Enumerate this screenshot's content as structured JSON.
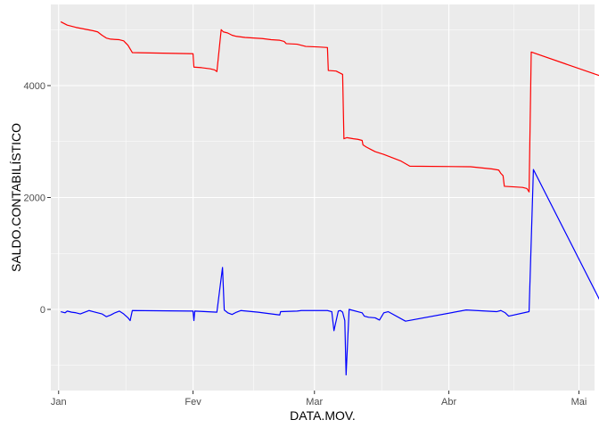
{
  "chart_data": {
    "type": "line",
    "title": "",
    "xlabel": "DATA.MOV.",
    "ylabel": "SALDO.CONTABILÍSTICO",
    "x_tick_labels": [
      "Jan",
      "Fev",
      "Mar",
      "Abr",
      "Mai"
    ],
    "x_tick_days": [
      1,
      32,
      60,
      91,
      121
    ],
    "y_tick_values": [
      0,
      2000,
      4000
    ],
    "y_tick_labels": [
      "0",
      "2000",
      "4000"
    ],
    "xlim_days": [
      -0.8,
      124.6
    ],
    "ylim": [
      -1450,
      5450
    ],
    "grid": true,
    "legend": "none",
    "background": "#EBEBEB",
    "series": [
      {
        "color": "#FF0000",
        "points": [
          [
            1.5,
            5140
          ],
          [
            2,
            5120
          ],
          [
            3,
            5080
          ],
          [
            5,
            5040
          ],
          [
            7,
            5010
          ],
          [
            9,
            4980
          ],
          [
            10,
            4960
          ],
          [
            11,
            4900
          ],
          [
            12,
            4850
          ],
          [
            13,
            4830
          ],
          [
            15,
            4820
          ],
          [
            16,
            4800
          ],
          [
            17,
            4720
          ],
          [
            18,
            4590
          ],
          [
            32,
            4570
          ],
          [
            32.2,
            4330
          ],
          [
            34,
            4320
          ],
          [
            36,
            4300
          ],
          [
            37,
            4280
          ],
          [
            37.5,
            4250
          ],
          [
            38.5,
            5000
          ],
          [
            39,
            4960
          ],
          [
            40,
            4940
          ],
          [
            41,
            4900
          ],
          [
            42,
            4880
          ],
          [
            44,
            4860
          ],
          [
            46,
            4850
          ],
          [
            48,
            4840
          ],
          [
            50,
            4820
          ],
          [
            52,
            4810
          ],
          [
            53,
            4790
          ],
          [
            53.5,
            4750
          ],
          [
            56,
            4740
          ],
          [
            57,
            4720
          ],
          [
            58,
            4700
          ],
          [
            61,
            4690
          ],
          [
            63,
            4680
          ],
          [
            63.2,
            4270
          ],
          [
            65,
            4260
          ],
          [
            65.5,
            4240
          ],
          [
            66.5,
            4200
          ],
          [
            66.8,
            3050
          ],
          [
            67.5,
            3070
          ],
          [
            69,
            3050
          ],
          [
            70,
            3040
          ],
          [
            71,
            3020
          ],
          [
            71.2,
            2940
          ],
          [
            72,
            2900
          ],
          [
            73,
            2860
          ],
          [
            74,
            2820
          ],
          [
            76,
            2770
          ],
          [
            78,
            2710
          ],
          [
            80,
            2650
          ],
          [
            82,
            2560
          ],
          [
            96,
            2550
          ],
          [
            101,
            2510
          ],
          [
            102.5,
            2490
          ],
          [
            103,
            2430
          ],
          [
            103.5,
            2390
          ],
          [
            103.8,
            2200
          ],
          [
            106,
            2190
          ],
          [
            108,
            2180
          ],
          [
            109,
            2160
          ],
          [
            109.5,
            2100
          ],
          [
            110,
            4600
          ],
          [
            130.5,
            4050
          ]
        ]
      },
      {
        "color": "#0000FF",
        "points": [
          [
            1.5,
            -40
          ],
          [
            2.5,
            -60
          ],
          [
            3,
            -30
          ],
          [
            4,
            -50
          ],
          [
            5,
            -60
          ],
          [
            6,
            -80
          ],
          [
            7,
            -50
          ],
          [
            8,
            -20
          ],
          [
            9,
            -40
          ],
          [
            11,
            -80
          ],
          [
            12,
            -130
          ],
          [
            13,
            -100
          ],
          [
            14,
            -60
          ],
          [
            15,
            -30
          ],
          [
            16,
            -80
          ],
          [
            17,
            -150
          ],
          [
            17.5,
            -200
          ],
          [
            18,
            -20
          ],
          [
            32,
            -30
          ],
          [
            32.2,
            -200
          ],
          [
            32.4,
            -30
          ],
          [
            35,
            -40
          ],
          [
            37.5,
            -50
          ],
          [
            38.8,
            750
          ],
          [
            39.2,
            -10
          ],
          [
            40,
            -60
          ],
          [
            41,
            -90
          ],
          [
            42,
            -50
          ],
          [
            43,
            -20
          ],
          [
            47,
            -50
          ],
          [
            50,
            -80
          ],
          [
            52,
            -100
          ],
          [
            52.2,
            -40
          ],
          [
            56,
            -30
          ],
          [
            57,
            -20
          ],
          [
            63,
            -20
          ],
          [
            64,
            -40
          ],
          [
            64.5,
            -380
          ],
          [
            65.5,
            -30
          ],
          [
            66,
            -20
          ],
          [
            66.5,
            -50
          ],
          [
            67,
            -200
          ],
          [
            67.3,
            -1170
          ],
          [
            68,
            0
          ],
          [
            69,
            -20
          ],
          [
            70,
            -40
          ],
          [
            71,
            -60
          ],
          [
            71.5,
            -120
          ],
          [
            72.5,
            -140
          ],
          [
            74,
            -150
          ],
          [
            75,
            -190
          ],
          [
            76,
            -60
          ],
          [
            77,
            -40
          ],
          [
            81,
            -210
          ],
          [
            95,
            -10
          ],
          [
            102,
            -40
          ],
          [
            103,
            -20
          ],
          [
            103.5,
            -40
          ],
          [
            104,
            -60
          ],
          [
            104.8,
            -120
          ],
          [
            109.5,
            -40
          ],
          [
            110.5,
            2500
          ],
          [
            130.5,
            -550
          ],
          [
            131,
            -30
          ]
        ]
      }
    ]
  }
}
